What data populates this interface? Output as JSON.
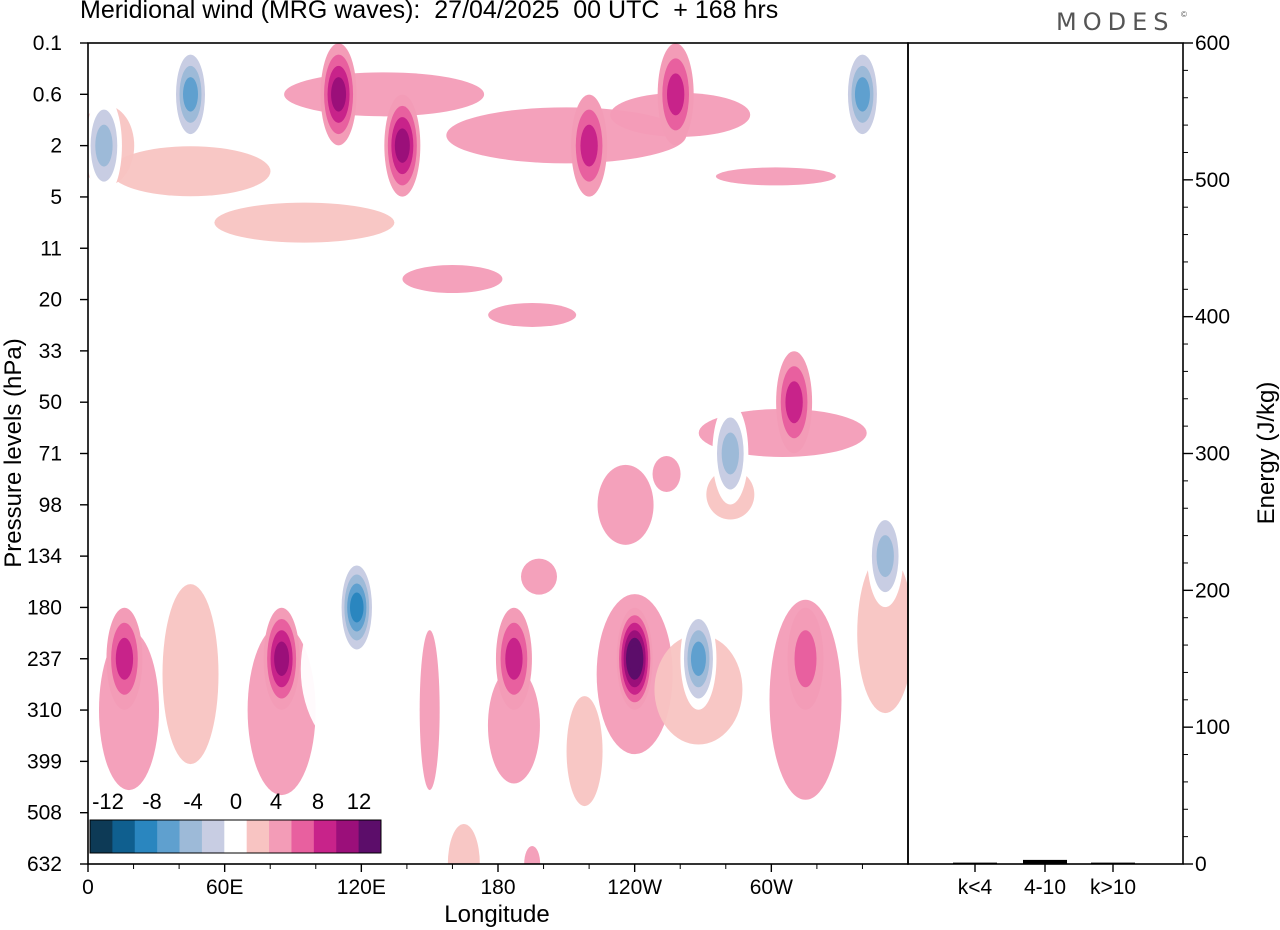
{
  "title": "Meridional wind (MRG waves):  27/04/2025  00 UTC  + 168 hrs",
  "brand": "MODES",
  "brand_mark": "©",
  "chart_data": [
    {
      "type": "heatmap",
      "title": "Meridional wind (MRG waves):  27/04/2025  00 UTC  + 168 hrs",
      "xlabel": "Longitude",
      "ylabel": "Pressure levels (hPa)",
      "x_ticks": [
        "0",
        "60E",
        "120E",
        "180",
        "120W",
        "60W"
      ],
      "x_range": [
        0,
        360
      ],
      "y_ticks": [
        "0.1",
        "0.6",
        "2",
        "5",
        "11",
        "20",
        "33",
        "50",
        "71",
        "98",
        "134",
        "180",
        "237",
        "310",
        "399",
        "508",
        "632"
      ],
      "colorbar": {
        "labels": [
          "-12",
          "-8",
          "-4",
          "0",
          "4",
          "8",
          "12"
        ],
        "levels": [
          -14,
          -12,
          -10,
          -8,
          -6,
          -4,
          -2,
          2,
          4,
          6,
          8,
          10,
          12,
          14
        ],
        "colors": [
          "#0d3a56",
          "#0f5f8f",
          "#2a86bf",
          "#5fa0cf",
          "#9dbad8",
          "#c8cde3",
          "#ffffff",
          "#f8c4c2",
          "#f39cb7",
          "#e8609f",
          "#c8238a",
          "#9b0f7a",
          "#5c0d6a"
        ]
      },
      "features": [
        {
          "lon": 7,
          "level": "2",
          "value": -7
        },
        {
          "lon": 45,
          "level": "0.6",
          "value": -8
        },
        {
          "lon": 110,
          "level": "0.6",
          "value": 8
        },
        {
          "lon": 138,
          "level": "2",
          "value": 8
        },
        {
          "lon": 220,
          "level": "2",
          "value": 6
        },
        {
          "lon": 258,
          "level": "0.6",
          "value": 6
        },
        {
          "lon": 340,
          "level": "0.6",
          "value": -8
        },
        {
          "lon": 16,
          "level": "237",
          "value": 7
        },
        {
          "lon": 85,
          "level": "237",
          "value": 8
        },
        {
          "lon": 118,
          "level": "180",
          "value": -10
        },
        {
          "lon": 187,
          "level": "237",
          "value": 6
        },
        {
          "lon": 240,
          "level": "237",
          "value": 12
        },
        {
          "lon": 268,
          "level": "237",
          "value": -9
        },
        {
          "lon": 282,
          "level": "71",
          "value": -6
        },
        {
          "lon": 315,
          "level": "237",
          "value": 5
        },
        {
          "lon": 350,
          "level": "134",
          "value": -7
        },
        {
          "lon": 310,
          "level": "50",
          "value": 7
        }
      ]
    },
    {
      "type": "bar",
      "ylabel": "Energy (J/kg)",
      "categories": [
        "k<4",
        "4-10",
        "k>10"
      ],
      "values": [
        1,
        3,
        1
      ],
      "ylim": [
        0,
        600
      ],
      "y_ticks": [
        "0",
        "100",
        "200",
        "300",
        "400",
        "500",
        "600"
      ]
    }
  ]
}
